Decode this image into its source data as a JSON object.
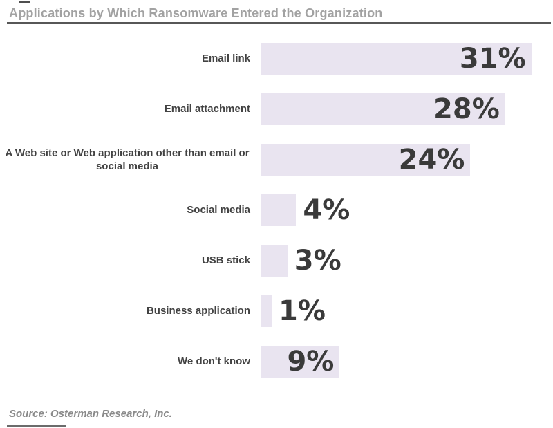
{
  "page": {
    "title": "Applications by Which Ransomware Entered the Organization",
    "source_note": "Source: Osterman Research, Inc."
  },
  "chart_data": {
    "type": "bar",
    "orientation": "horizontal",
    "title": "Applications by Which Ransomware Entered the Organization",
    "categories": [
      "Email link",
      "Email attachment",
      "A Web site or Web application other than email or social media",
      "Social media",
      "USB stick",
      "Business application",
      "We don't know"
    ],
    "values": [
      31,
      28,
      24,
      4,
      3,
      1,
      9
    ],
    "value_suffix": "%",
    "xlabel": "",
    "ylabel": "",
    "xlim": [
      0,
      31
    ],
    "grid": false,
    "legend": false,
    "bar_color": "#e9e4f0",
    "value_label_color": "#3a3a3a",
    "category_label_color": "#424242",
    "title_color": "#a2a2a2",
    "source": "Source: Osterman Research, Inc."
  }
}
